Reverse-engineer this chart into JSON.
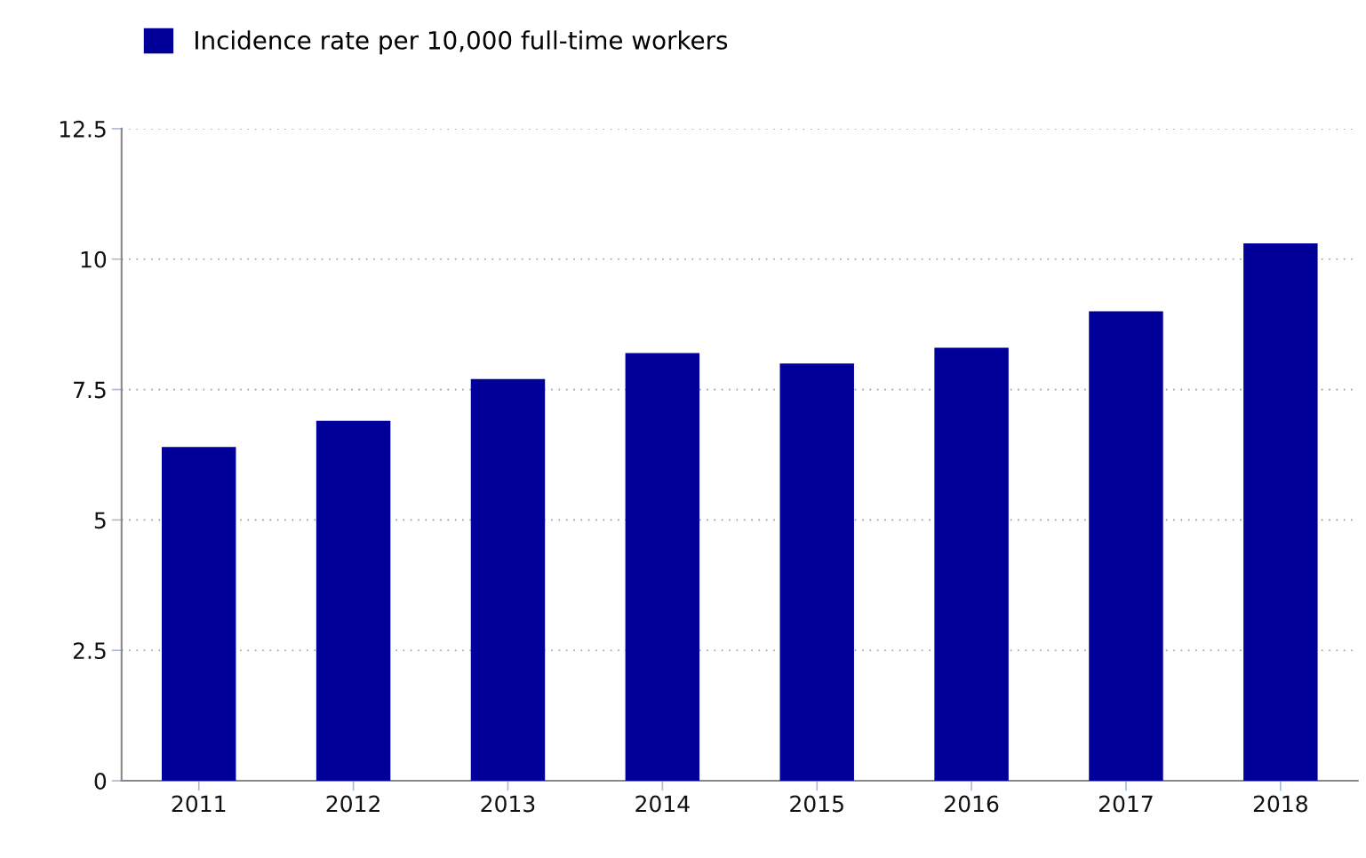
{
  "chart_data": {
    "type": "bar",
    "categories": [
      "2011",
      "2012",
      "2013",
      "2014",
      "2015",
      "2016",
      "2017",
      "2018"
    ],
    "series": [
      {
        "name": "Incidence rate per 10,000 full-time workers",
        "color": "#000099",
        "values": [
          6.4,
          6.9,
          7.7,
          8.2,
          8.0,
          8.3,
          9.0,
          10.3
        ]
      }
    ],
    "ylim": [
      0,
      12.5
    ],
    "yticks": [
      0,
      2.5,
      5,
      7.5,
      10,
      12.5
    ],
    "grid": "y",
    "legend": "top left"
  }
}
